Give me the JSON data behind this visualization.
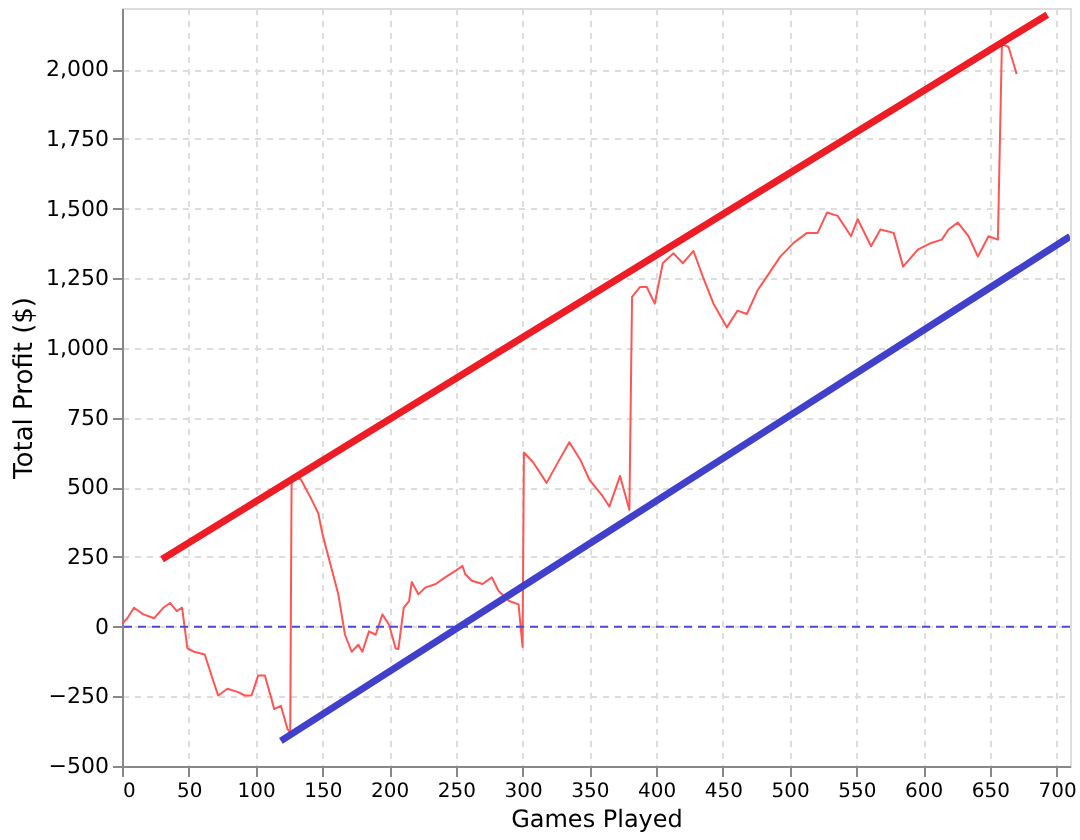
{
  "chart_data": {
    "type": "line",
    "xlabel": "Games Played",
    "ylabel": "Total Profit ($)",
    "xlim": [
      0,
      710
    ],
    "xticks": [
      0,
      50,
      100,
      150,
      200,
      250,
      300,
      350,
      400,
      450,
      500,
      550,
      600,
      650,
      700
    ],
    "ylim": [
      -500,
      2220
    ],
    "yticks": [
      -500,
      -250,
      0,
      250,
      500,
      750,
      {
        "value": 1000,
        "label": "1,000"
      },
      {
        "value": 1250,
        "label": "1,250"
      },
      {
        "value": 1500,
        "label": "1,500"
      },
      {
        "value": 1750,
        "label": "1,750"
      },
      {
        "value": 2000,
        "label": "2,000"
      }
    ],
    "grid": true,
    "legend": false,
    "marker": "none",
    "ref_lines": [
      {
        "axis": "y",
        "value": 0,
        "color": "#4a4ad8",
        "line_style": "dashed"
      }
    ],
    "series": [
      {
        "color": "#ff5555",
        "line_style": "solid",
        "x": [
          0,
          4,
          9,
          16,
          24,
          31,
          36,
          41,
          45,
          49,
          54,
          62,
          67,
          72,
          79,
          87,
          92,
          97,
          102,
          107,
          112,
          114,
          119,
          124,
          126,
          127,
          128,
          134,
          142,
          147,
          150,
          154,
          162,
          167,
          172,
          177,
          180,
          185,
          190,
          195,
          200,
          205,
          207,
          211,
          215,
          217,
          222,
          227,
          235,
          242,
          250,
          255,
          257,
          262,
          270,
          277,
          282,
          290,
          297,
          300,
          301,
          308,
          318,
          325,
          335,
          343,
          350,
          360,
          365,
          373,
          380,
          382,
          388,
          393,
          399,
          405,
          413,
          420,
          428,
          435,
          443,
          453,
          461,
          468,
          476,
          483,
          493,
          503,
          513,
          521,
          528,
          536,
          546,
          551,
          561,
          568,
          578,
          585,
          596,
          606,
          614,
          619,
          626,
          634,
          641,
          649,
          656,
          659,
          664,
          670
        ],
        "values": [
          10,
          30,
          68,
          44,
          30,
          68,
          85,
          56,
          68,
          -78,
          -90,
          -100,
          -175,
          -247,
          -223,
          -235,
          -247,
          -247,
          -175,
          -175,
          -260,
          -296,
          -284,
          -368,
          -380,
          520,
          540,
          528,
          456,
          407,
          335,
          262,
          116,
          -29,
          -90,
          -65,
          -90,
          -17,
          -29,
          44,
          7,
          -78,
          -80,
          68,
          92,
          160,
          116,
          140,
          153,
          177,
          201,
          218,
          189,
          165,
          153,
          177,
          128,
          92,
          80,
          -73,
          625,
          589,
          516,
          577,
          662,
          601,
          528,
          468,
          431,
          541,
          419,
          1183,
          1219,
          1219,
          1159,
          1304,
          1340,
          1304,
          1348,
          1256,
          1159,
          1074,
          1134,
          1122,
          1207,
          1256,
          1328,
          1377,
          1413,
          1413,
          1486,
          1474,
          1401,
          1462,
          1365,
          1425,
          1413,
          1292,
          1353,
          1377,
          1389,
          1425,
          1450,
          1401,
          1328,
          1401,
          1389,
          2092,
          2080,
          1983
        ]
      },
      {
        "color": "#ee1c25",
        "line_style": "solid",
        "x": [
          30,
          693
        ],
        "values": [
          242,
          2196
        ]
      },
      {
        "color": "#4040cc",
        "line_style": "solid",
        "x": [
          119,
          710
        ],
        "values": [
          -410,
          1400
        ]
      }
    ]
  }
}
